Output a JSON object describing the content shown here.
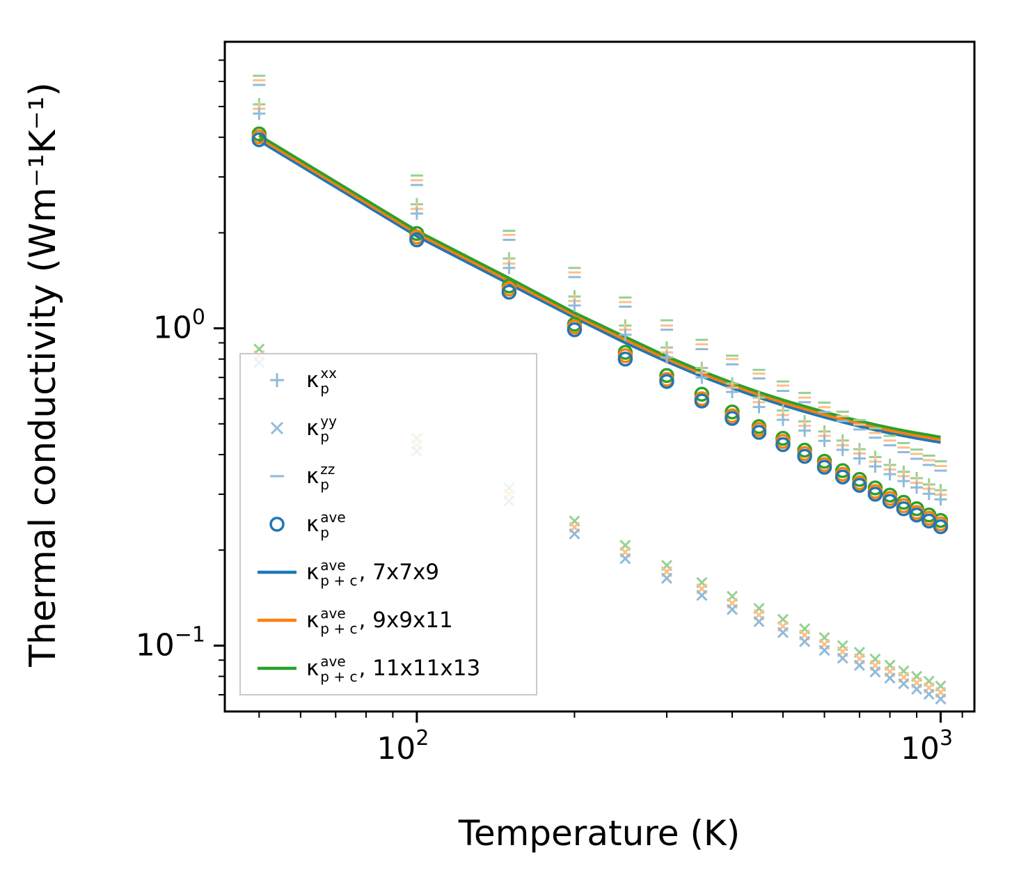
{
  "chart_data": {
    "type": "line+scatter",
    "title": "",
    "xlabel": "Temperature (K)",
    "ylabel": "Thermal conductivity (Wm⁻¹K⁻¹)",
    "x_scale": "log",
    "y_scale": "log",
    "xlim": [
      43,
      1160
    ],
    "ylim": [
      0.062,
      8.0
    ],
    "grid": false,
    "legend_position": "center-left",
    "x_major_ticks": [
      {
        "value": 100,
        "label_base": "10",
        "label_exp": "2"
      },
      {
        "value": 1000,
        "label_base": "10",
        "label_exp": "3"
      }
    ],
    "x_minor_ticks": [
      50,
      60,
      70,
      80,
      90,
      200,
      300,
      400,
      500,
      600,
      700,
      800,
      900,
      1100
    ],
    "y_major_ticks": [
      {
        "value": 1,
        "label_base": "10",
        "label_exp": "0"
      },
      {
        "value": 0.1,
        "label_base": "10",
        "label_exp": "−1"
      }
    ],
    "y_minor_ticks": [
      0.07,
      0.08,
      0.09,
      0.2,
      0.3,
      0.4,
      0.5,
      0.6,
      0.7,
      0.8,
      0.9,
      2,
      3,
      4,
      5,
      6,
      7
    ],
    "temperatures": [
      50,
      100,
      150,
      200,
      250,
      300,
      350,
      400,
      450,
      500,
      550,
      600,
      650,
      700,
      750,
      800,
      850,
      900,
      950,
      1000
    ],
    "scatter_series": [
      {
        "name": "kappa-p-zz",
        "marker": "dash",
        "variants": [
          {
            "supercell": "11x11x13",
            "color": "#96d096",
            "values": [
              6.25,
              3.03,
              2.03,
              1.55,
              1.25,
              1.06,
              0.92,
              0.82,
              0.74,
              0.68,
              0.626,
              0.583,
              0.546,
              0.514,
              0.484,
              0.458,
              0.435,
              0.415,
              0.397,
              0.381
            ]
          },
          {
            "supercell": "9x9x11",
            "color": "#ffbf87",
            "values": [
              6.05,
              2.93,
              1.97,
              1.5,
              1.21,
              1.02,
              0.89,
              0.8,
              0.72,
              0.66,
              0.605,
              0.564,
              0.528,
              0.497,
              0.468,
              0.443,
              0.421,
              0.402,
              0.384,
              0.368
            ]
          },
          {
            "supercell": "7x7x9",
            "color": "#8fbbda",
            "values": [
              5.85,
              2.83,
              1.9,
              1.45,
              1.17,
              0.99,
              0.86,
              0.77,
              0.695,
              0.635,
              0.585,
              0.545,
              0.51,
              0.48,
              0.452,
              0.428,
              0.407,
              0.388,
              0.371,
              0.356
            ]
          }
        ]
      },
      {
        "name": "kappa-p-xx",
        "marker": "plus",
        "variants": [
          {
            "supercell": "11x11x13",
            "color": "#96d096",
            "values": [
              5.08,
              2.46,
              1.66,
              1.26,
              1.02,
              0.87,
              0.75,
              0.67,
              0.605,
              0.551,
              0.509,
              0.473,
              0.443,
              0.416,
              0.393,
              0.371,
              0.353,
              0.337,
              0.322,
              0.309
            ]
          },
          {
            "supercell": "9x9x11",
            "color": "#ffbf87",
            "values": [
              4.92,
              2.38,
              1.6,
              1.22,
              0.99,
              0.84,
              0.725,
              0.65,
              0.585,
              0.533,
              0.493,
              0.458,
              0.428,
              0.403,
              0.38,
              0.359,
              0.342,
              0.326,
              0.312,
              0.299
            ]
          },
          {
            "supercell": "7x7x9",
            "color": "#8fbbda",
            "values": [
              4.75,
              2.3,
              1.55,
              1.18,
              0.955,
              0.81,
              0.7,
              0.63,
              0.565,
              0.515,
              0.476,
              0.442,
              0.414,
              0.389,
              0.367,
              0.347,
              0.33,
              0.315,
              0.301,
              0.289
            ]
          }
        ]
      },
      {
        "name": "kappa-p-yy",
        "marker": "x",
        "variants": [
          {
            "supercell": "11x11x13",
            "color": "#96d096",
            "values": [
              0.86,
              0.45,
              0.314,
              0.247,
              0.207,
              0.179,
              0.158,
              0.143,
              0.131,
              0.121,
              0.113,
              0.106,
              0.1,
              0.0952,
              0.0907,
              0.0868,
              0.0832,
              0.08,
              0.0772,
              0.0746
            ]
          },
          {
            "supercell": "9x9x11",
            "color": "#ffbf87",
            "values": [
              0.82,
              0.43,
              0.3,
              0.236,
              0.197,
              0.171,
              0.151,
              0.136,
              0.125,
              0.115,
              0.108,
              0.101,
              0.0957,
              0.0909,
              0.0866,
              0.0828,
              0.0795,
              0.0764,
              0.0737,
              0.0712
            ]
          },
          {
            "supercell": "7x7x9",
            "color": "#8fbbda",
            "values": [
              0.78,
              0.41,
              0.286,
              0.225,
              0.188,
              0.163,
              0.144,
              0.13,
              0.119,
              0.11,
              0.103,
              0.0966,
              0.0913,
              0.0867,
              0.0826,
              0.079,
              0.0758,
              0.0729,
              0.0703,
              0.0679
            ]
          }
        ]
      },
      {
        "name": "kappa-p-ave",
        "marker": "circle",
        "variants": [
          {
            "supercell": "11x11x13",
            "color": "#2ca02c",
            "values": [
              4.1,
              1.99,
              1.36,
              1.03,
              0.84,
              0.71,
              0.62,
              0.545,
              0.49,
              0.45,
              0.413,
              0.381,
              0.356,
              0.334,
              0.314,
              0.298,
              0.283,
              0.27,
              0.258,
              0.248
            ]
          },
          {
            "supercell": "9x9x11",
            "color": "#ff7f0e",
            "values": [
              4.01,
              1.94,
              1.33,
              1.01,
              0.82,
              0.69,
              0.6,
              0.53,
              0.48,
              0.44,
              0.403,
              0.372,
              0.347,
              0.326,
              0.306,
              0.291,
              0.276,
              0.263,
              0.252,
              0.242
            ]
          },
          {
            "supercell": "7x7x9",
            "color": "#1f77b4",
            "values": [
              3.93,
              1.9,
              1.3,
              0.99,
              0.8,
              0.68,
              0.59,
              0.52,
              0.47,
              0.43,
              0.395,
              0.365,
              0.34,
              0.32,
              0.3,
              0.285,
              0.27,
              0.258,
              0.247,
              0.237
            ]
          }
        ]
      }
    ],
    "line_series": [
      {
        "name": "kappa-p-plus-c-ave-7x7x9",
        "color": "#1f77b4",
        "values": [
          3.9,
          1.95,
          1.38,
          1.08,
          0.9,
          0.785,
          0.705,
          0.648,
          0.605,
          0.572,
          0.546,
          0.524,
          0.506,
          0.491,
          0.478,
          0.467,
          0.458,
          0.45,
          0.443,
          0.437
        ]
      },
      {
        "name": "kappa-p-plus-c-ave-9x9x11",
        "color": "#ff7f0e",
        "values": [
          3.98,
          1.99,
          1.41,
          1.1,
          0.92,
          0.8,
          0.719,
          0.661,
          0.617,
          0.583,
          0.557,
          0.534,
          0.516,
          0.501,
          0.488,
          0.476,
          0.467,
          0.459,
          0.452,
          0.446
        ]
      },
      {
        "name": "kappa-p-plus-c-ave-11x11x13",
        "color": "#2ca02c",
        "values": [
          4.06,
          2.03,
          1.44,
          1.12,
          0.94,
          0.816,
          0.733,
          0.674,
          0.629,
          0.595,
          0.568,
          0.545,
          0.526,
          0.511,
          0.497,
          0.486,
          0.476,
          0.468,
          0.461,
          0.454
        ]
      }
    ]
  },
  "colors": {
    "blue": "#1f77b4",
    "orange": "#ff7f0e",
    "green": "#2ca02c",
    "light_blue": "#8fbbda",
    "light_orange": "#ffbf87",
    "light_green": "#96d096"
  },
  "legend": {
    "entries": [
      {
        "symbol": "κ",
        "sup": "xx",
        "sub": "p",
        "suffix": "",
        "marker": "plus",
        "marker_color": "#8fbbda"
      },
      {
        "symbol": "κ",
        "sup": "yy",
        "sub": "p",
        "suffix": "",
        "marker": "x",
        "marker_color": "#8fbbda"
      },
      {
        "symbol": "κ",
        "sup": "zz",
        "sub": "p",
        "suffix": "",
        "marker": "dash",
        "marker_color": "#8fbbda"
      },
      {
        "symbol": "κ",
        "sup": "ave",
        "sub": "p",
        "suffix": "",
        "marker": "circle",
        "marker_color": "#1f77b4"
      },
      {
        "symbol": "κ",
        "sup": "ave",
        "sub": "p + c",
        "suffix": ", 7x7x9",
        "marker": "line",
        "marker_color": "#1f77b4"
      },
      {
        "symbol": "κ",
        "sup": "ave",
        "sub": "p + c",
        "suffix": ", 9x9x11",
        "marker": "line",
        "marker_color": "#ff7f0e"
      },
      {
        "symbol": "κ",
        "sup": "ave",
        "sub": "p + c",
        "suffix": ", 11x11x13",
        "marker": "line",
        "marker_color": "#2ca02c"
      }
    ]
  }
}
